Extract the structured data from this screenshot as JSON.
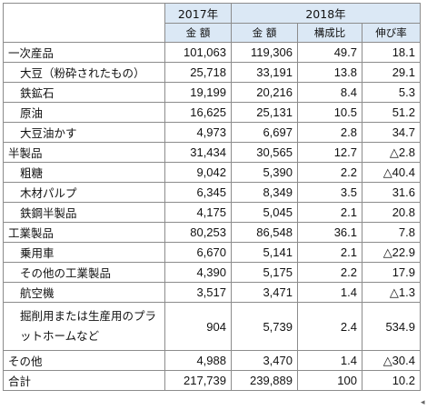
{
  "header": {
    "year_2017": "2017年",
    "year_2018": "2018年",
    "col_amount_2017": "金 額",
    "col_amount_2018": "金 額",
    "col_share": "構成比",
    "col_growth": "伸び率"
  },
  "rows": [
    {
      "label": "一次産品",
      "a2017": "101,063",
      "a2018": "119,306",
      "share": "49.7",
      "growth": "18.1",
      "sub": false
    },
    {
      "label": "大豆（粉砕されたもの）",
      "a2017": "25,718",
      "a2018": "33,191",
      "share": "13.8",
      "growth": "29.1",
      "sub": true
    },
    {
      "label": "鉄鉱石",
      "a2017": "19,199",
      "a2018": "20,216",
      "share": "8.4",
      "growth": "5.3",
      "sub": true
    },
    {
      "label": "原油",
      "a2017": "16,625",
      "a2018": "25,131",
      "share": "10.5",
      "growth": "51.2",
      "sub": true
    },
    {
      "label": "大豆油かす",
      "a2017": "4,973",
      "a2018": "6,697",
      "share": "2.8",
      "growth": "34.7",
      "sub": true
    },
    {
      "label": "半製品",
      "a2017": "31,434",
      "a2018": "30,565",
      "share": "12.7",
      "growth": "△2.8",
      "sub": false
    },
    {
      "label": "粗糖",
      "a2017": "9,042",
      "a2018": "5,390",
      "share": "2.2",
      "growth": "△40.4",
      "sub": true
    },
    {
      "label": "木材パルプ",
      "a2017": "6,345",
      "a2018": "8,349",
      "share": "3.5",
      "growth": "31.6",
      "sub": true
    },
    {
      "label": "鉄鋼半製品",
      "a2017": "4,175",
      "a2018": "5,045",
      "share": "2.1",
      "growth": "20.8",
      "sub": true
    },
    {
      "label": "工業製品",
      "a2017": "80,253",
      "a2018": "86,548",
      "share": "36.1",
      "growth": "7.8",
      "sub": false
    },
    {
      "label": "乗用車",
      "a2017": "6,670",
      "a2018": "5,141",
      "share": "2.1",
      "growth": "△22.9",
      "sub": true
    },
    {
      "label": "その他の工業製品",
      "a2017": "4,390",
      "a2018": "5,175",
      "share": "2.2",
      "growth": "17.9",
      "sub": true
    },
    {
      "label": "航空機",
      "a2017": "3,517",
      "a2018": "3,471",
      "share": "1.4",
      "growth": "△1.3",
      "sub": true
    },
    {
      "label": "掘削用または生産用のプラットホームなど",
      "a2017": "904",
      "a2018": "5,739",
      "share": "2.4",
      "growth": "534.9",
      "sub": true,
      "tall": true
    },
    {
      "label": "その他",
      "a2017": "4,988",
      "a2018": "3,470",
      "share": "1.4",
      "growth": "△30.4",
      "sub": false
    },
    {
      "label": "合計",
      "a2017": "217,739",
      "a2018": "239,889",
      "share": "100",
      "growth": "10.2",
      "sub": false
    }
  ]
}
